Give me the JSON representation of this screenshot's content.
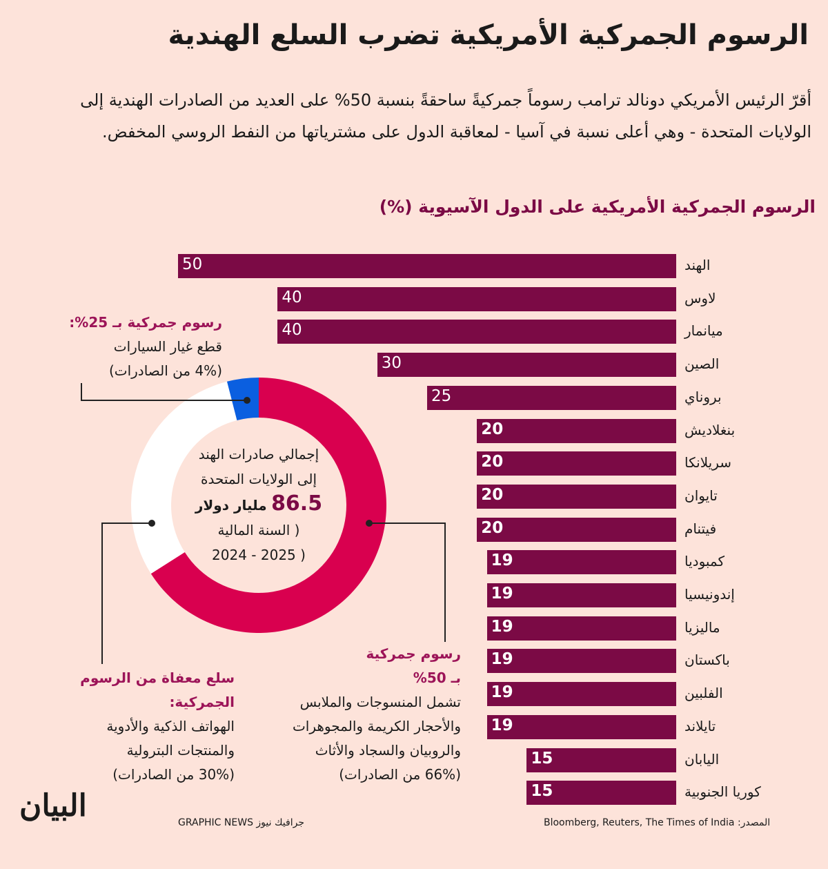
{
  "title": "الرسوم الجمركية الأمريكية تضرب السلع الهندية",
  "intro": "أقرّ الرئيس الأمريكي  دونالد ترامب رسوماً جمركيةً ساحقةً بنسبة 50% على العديد من الصادرات الهندية إلى الولايات المتحدة - وهي أعلى نسبة في آسيا - لمعاقبة الدول على مشترياتها من النفط الروسي المخفض.",
  "chart_data": [
    {
      "type": "bar",
      "orientation": "horizontal",
      "title": "الرسوم الجمركية الأمريكية  على الدول الآسيوية (%)",
      "categories": [
        "الهند",
        "لاوس",
        "ميانمار",
        "الصين",
        "بروناي",
        "بنغلاديش",
        "سريلانكا",
        "تايوان",
        "فيتنام",
        "كمبوديا",
        "إندونيسيا",
        "ماليزيا",
        "باكستان",
        "الفلبين",
        "تايلاند",
        "اليابان",
        "كوريا الجنوبية"
      ],
      "values": [
        50,
        40,
        40,
        30,
        25,
        20,
        20,
        20,
        20,
        19,
        19,
        19,
        19,
        19,
        19,
        15,
        15
      ],
      "xlim": [
        0,
        50
      ],
      "color": "#7b0a45"
    },
    {
      "type": "pie",
      "style": "donut",
      "slices": [
        {
          "name": "rate50",
          "value": 66,
          "color": "#d9004f"
        },
        {
          "name": "exempt",
          "value": 30,
          "color": "#ffffff"
        },
        {
          "name": "rate25",
          "value": 4,
          "color": "#0b5fe0"
        }
      ],
      "center": {
        "line1": "إجمالي صادرات الهند",
        "line2": "إلى الولايات المتحدة",
        "amount": "86.5",
        "unit": "مليار دولار",
        "line4": "( السنة المالية",
        "line5": "(  2025 - 2024"
      }
    }
  ],
  "notes": {
    "rate25": {
      "head": "رسوم جمركية بـ 25%:",
      "l1": "قطع غيار السيارات",
      "l2": "(4% من الصادرات)"
    },
    "rate50": {
      "head1": "رسوم جمركية",
      "head2": "بـ 50%",
      "l1": "تشمل المنسوجات والملابس",
      "l2": "والأحجار الكريمة والمجوهرات",
      "l3": "والروبيان والسجاد والأثاث",
      "l4": "(66% من الصادرات)"
    },
    "exempt": {
      "head1": "سلع معفاة من الرسوم",
      "head2": "الجمركية:",
      "l1": "الهواتف الذكية والأدوية",
      "l2": "والمنتجات البترولية",
      "l3": "(30% من الصادرات)"
    }
  },
  "footer": {
    "logo": "البيان",
    "credit": "GRAPHIC NEWS جرافيك نيوز",
    "source": "Bloomberg, Reuters, The Times of India :المصدر"
  }
}
